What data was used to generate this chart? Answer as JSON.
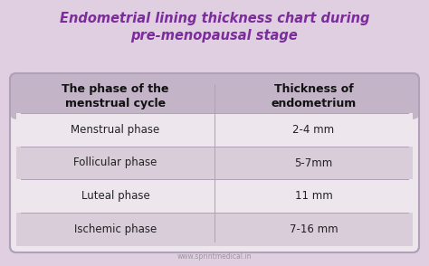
{
  "title_line1": "Endometrial lining thickness chart during",
  "title_line2": "pre-menopausal stage",
  "bg_color": "#e0cfe0",
  "table_bg": "#ede6ed",
  "header_bg": "#c4b4c8",
  "row_even_bg": "#ede6ed",
  "row_odd_bg": "#d8cdd8",
  "header_col1": "The phase of the\nmenstrual cycle",
  "header_col2": "Thickness of\nendometrium",
  "rows": [
    [
      "Menstrual phase",
      "2-4 mm"
    ],
    [
      "Follicular phase",
      "5-7mm"
    ],
    [
      "Luteal phase",
      "11 mm"
    ],
    [
      "Ischemic phase",
      "7-16 mm"
    ]
  ],
  "title_color": "#7b2d9b",
  "header_text_color": "#111111",
  "row_text_color": "#222222",
  "divider_color": "#b0a0b8",
  "footer_text": "www.sprintmedical.in",
  "footer_color": "#999999",
  "title_fontsize": 10.5,
  "header_fontsize": 9.0,
  "row_fontsize": 8.5,
  "footer_fontsize": 5.5
}
